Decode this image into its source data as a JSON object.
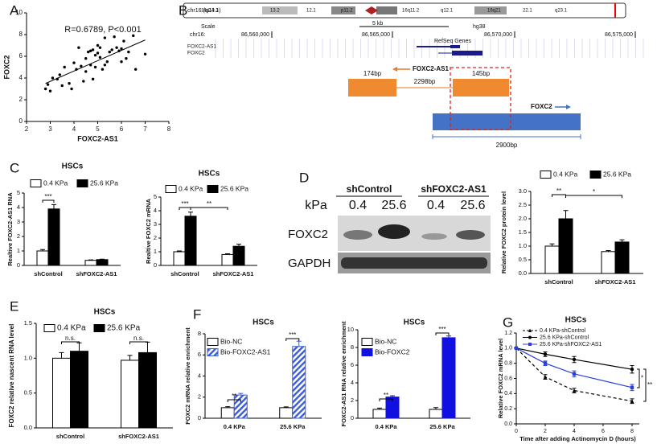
{
  "panel_labels": [
    "A",
    "B",
    "C",
    "D",
    "E",
    "F",
    "G"
  ],
  "genome_view": {
    "ideogram_label": "chr16 (q24.1)",
    "bands": [
      "16p13.3",
      "13.2",
      "12.1",
      "p11.2",
      "16q11.2",
      "q12.1",
      "16q21",
      "22.1",
      "q23.1"
    ],
    "scale_label": "Scale",
    "scale_size": "5 kb",
    "assembly": "hg38",
    "chrom": "chr16:",
    "positions": [
      "86,560,000",
      "86,565,000",
      "86,570,000",
      "86,575,000"
    ],
    "track": "RefSeq Genes",
    "genes": [
      "FOXC2-AS1",
      "FOXC2"
    ],
    "antisense_label": "FOXC2-AS1",
    "exon_sizes": [
      "174bp",
      "145bp"
    ],
    "intron_size": "2298bp",
    "gene_label": "FOXC2",
    "gene_size": "2900bp"
  },
  "western_blot": {
    "unit": "kPa",
    "groups": [
      "shControl",
      "shFOXC2-AS1"
    ],
    "lanes": [
      "0.4",
      "25.6",
      "0.4",
      "25.6"
    ],
    "proteins": [
      "FOXC2",
      "GAPDH"
    ]
  },
  "chart_data": [
    {
      "type": "scatter",
      "annotation": "R=0.6789, P<0.001",
      "x_label": "FOXC2-AS1",
      "y_label": "FOXC2",
      "x": [
        2.8,
        2.9,
        3.0,
        3.1,
        3.3,
        3.4,
        3.5,
        3.6,
        3.8,
        3.9,
        4.0,
        4.1,
        4.2,
        4.3,
        4.4,
        4.5,
        4.5,
        4.6,
        4.7,
        4.7,
        4.8,
        4.8,
        4.9,
        4.9,
        5.0,
        5.0,
        5.1,
        5.1,
        5.2,
        5.3,
        5.3,
        5.4,
        5.5,
        5.6,
        5.7,
        5.8,
        5.9,
        6.0,
        6.0,
        6.1,
        6.2,
        6.3,
        6.5,
        6.6,
        7.0
      ],
      "y": [
        3.0,
        3.4,
        2.8,
        4.0,
        3.9,
        4.3,
        3.3,
        5.0,
        3.5,
        3.0,
        5.4,
        4.8,
        6.8,
        5.1,
        3.7,
        5.8,
        4.6,
        6.4,
        6.5,
        5.2,
        3.9,
        6.6,
        5.0,
        6.1,
        6.3,
        7.0,
        5.9,
        6.8,
        4.8,
        5.2,
        7.7,
        5.5,
        6.4,
        6.6,
        7.8,
        6.8,
        6.5,
        6.7,
        5.5,
        7.4,
        5.8,
        6.4,
        7.9,
        4.8,
        6.2
      ],
      "color": "#000000",
      "trendline": {
        "x": [
          2.8,
          7.0
        ],
        "y": [
          3.5,
          7.5
        ]
      },
      "xlim": [
        2,
        8
      ],
      "xticks": [
        2,
        3,
        4,
        5,
        6,
        7,
        8
      ],
      "ylim": [
        0,
        10
      ],
      "yticks": [
        0,
        2,
        4,
        6,
        8,
        10
      ]
    },
    {
      "type": "bar",
      "title": "HSCs",
      "y_label": "Realtive FOXC2-AS1 RNA",
      "categories": [
        "shControl",
        "shFOXC2-AS1"
      ],
      "series": [
        {
          "name": "0.4 KPa",
          "color": "#ffffff",
          "values": [
            1.0,
            0.35
          ],
          "errors": [
            0.1,
            0.03
          ]
        },
        {
          "name": "25.6 KPa",
          "color": "#000000",
          "values": [
            3.9,
            0.4
          ],
          "errors": [
            0.3,
            0.03
          ]
        }
      ],
      "ylim": [
        0,
        5
      ],
      "yticks": [
        0,
        1,
        2,
        3,
        4,
        5
      ],
      "annotations": [
        "***"
      ]
    },
    {
      "type": "bar",
      "title": "HSCs",
      "y_label": "Realtive FOXC2 mRNA",
      "categories": [
        "shControl",
        "shFOXC2-AS1"
      ],
      "series": [
        {
          "name": "0.4 KPa",
          "color": "#ffffff",
          "values": [
            1.0,
            0.8
          ],
          "errors": [
            0.06,
            0.05
          ]
        },
        {
          "name": "25.6 KPa",
          "color": "#000000",
          "values": [
            3.6,
            1.4
          ],
          "errors": [
            0.3,
            0.15
          ]
        }
      ],
      "ylim": [
        0,
        5
      ],
      "yticks": [
        0,
        1,
        2,
        3,
        4,
        5
      ],
      "annotations": [
        "***",
        "**"
      ]
    },
    {
      "type": "bar",
      "y_label": "Relative FOXC2 protein  level",
      "categories": [
        "shControl",
        "shFOXC2-AS1"
      ],
      "series": [
        {
          "name": "0.4 KPa",
          "color": "#ffffff",
          "values": [
            1.0,
            0.8
          ],
          "errors": [
            0.08,
            0.04
          ]
        },
        {
          "name": "25.6 KPa",
          "color": "#000000",
          "values": [
            2.0,
            1.15
          ],
          "errors": [
            0.3,
            0.08
          ]
        }
      ],
      "ylim": [
        0,
        3
      ],
      "yticks": [
        {
          "value": 0,
          "label": "0.0"
        },
        {
          "value": 0.5,
          "label": "0.5"
        },
        {
          "value": 1,
          "label": "1.0"
        },
        {
          "value": 1.5,
          "label": "1.5"
        },
        {
          "value": 2,
          "label": "2.0"
        },
        {
          "value": 2.5,
          "label": "2.5"
        },
        {
          "value": 3,
          "label": "3.0"
        }
      ],
      "annotations": [
        "**",
        "*"
      ]
    },
    {
      "type": "bar",
      "title": "HSCs",
      "y_label": "FOXC2 relative nascent RNA level",
      "categories": [
        "shControl",
        "shFOXC2-AS1"
      ],
      "series": [
        {
          "name": "0.4 KPa",
          "color": "#ffffff",
          "values": [
            1.0,
            0.97
          ],
          "errors": [
            0.08,
            0.07
          ]
        },
        {
          "name": "25.6 KPa",
          "color": "#000000",
          "values": [
            1.1,
            1.08
          ],
          "errors": [
            0.12,
            0.15
          ]
        }
      ],
      "ylim": [
        0,
        1.5
      ],
      "yticks": [
        {
          "value": 0,
          "label": "0.0"
        },
        {
          "value": 0.5,
          "label": "0.5"
        },
        {
          "value": 1,
          "label": "1.0"
        },
        {
          "value": 1.5,
          "label": "1.5"
        }
      ],
      "annotations": [
        "n.s.",
        "n.s."
      ]
    },
    {
      "type": "bar",
      "title": "HSCs",
      "y_label": "FOXC2 mRNA relative enrichment",
      "categories": [
        "0.4 KPa",
        "25.6 KPa"
      ],
      "series": [
        {
          "name": "Bio-NC",
          "color": "#ffffff",
          "values": [
            1.0,
            1.0
          ],
          "errors": [
            0.1,
            0.08
          ]
        },
        {
          "name": "Bio-FOXC2-AS1",
          "color": "#3a5bd9",
          "pattern": "hatch",
          "values": [
            2.2,
            6.8
          ],
          "errors": [
            0.15,
            0.5
          ]
        }
      ],
      "ylim": [
        0,
        8
      ],
      "yticks": [
        0,
        2,
        4,
        6,
        8
      ],
      "annotations": [
        "**",
        "***"
      ]
    },
    {
      "type": "bar",
      "title": "HSCs",
      "y_label": "FOXC2-AS1 RNA relative enrichment",
      "categories": [
        "0.4 KPa",
        "25.6 KPa"
      ],
      "series": [
        {
          "name": "Bio-NC",
          "color": "#ffffff",
          "values": [
            1.0,
            1.0
          ],
          "errors": [
            0.15,
            0.2
          ]
        },
        {
          "name": "Bio-FOXC2",
          "color": "#1010e0",
          "values": [
            2.4,
            9.1
          ],
          "errors": [
            0.15,
            0.2
          ]
        }
      ],
      "ylim": [
        0,
        10
      ],
      "yticks": [
        0,
        2,
        4,
        6,
        8,
        10
      ],
      "annotations": [
        "**",
        "***"
      ]
    },
    {
      "type": "line",
      "title": "HSCs",
      "x_label": "Time after adding Actinomycin D (hours)",
      "y_label": "Relative FOXC2 mRNA level",
      "x": [
        0,
        2,
        4,
        8
      ],
      "series": [
        {
          "name": "0.4 KPa-shControl",
          "color": "#000000",
          "marker": "triangle",
          "dashed": true,
          "values": [
            1.0,
            0.62,
            0.44,
            0.3
          ],
          "errors": [
            0,
            0.03,
            0.03,
            0.03
          ]
        },
        {
          "name": "25.6 KPa-shControl",
          "color": "#000000",
          "marker": "circle",
          "values": [
            1.0,
            0.92,
            0.85,
            0.72
          ],
          "errors": [
            0,
            0.03,
            0.04,
            0.05
          ]
        },
        {
          "name": "25.6 KPa-shFOXC2-AS1",
          "color": "#2b3fd6",
          "marker": "square",
          "values": [
            1.0,
            0.8,
            0.66,
            0.48
          ],
          "errors": [
            0,
            0.03,
            0.04,
            0.04
          ]
        }
      ],
      "xlim": [
        0,
        8.5
      ],
      "xticks": [
        0,
        2,
        4,
        6,
        8
      ],
      "ylim": [
        0,
        1.2
      ],
      "yticks": [
        {
          "value": 0,
          "label": "0.0"
        },
        {
          "value": 0.2,
          "label": "0.2"
        },
        {
          "value": 0.4,
          "label": "0.4"
        },
        {
          "value": 0.6,
          "label": "0.6"
        },
        {
          "value": 0.8,
          "label": "0.8"
        },
        {
          "value": 1,
          "label": "1.0"
        },
        {
          "value": 1.2,
          "label": "1.2"
        }
      ],
      "annotations": [
        "*",
        "**"
      ]
    }
  ]
}
